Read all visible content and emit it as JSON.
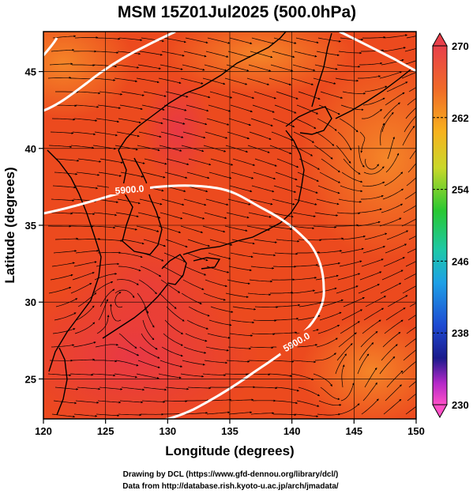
{
  "title": "MSM 15Z01Jul2025 (500.0hPa)",
  "x_axis": {
    "label": "Longitude (degrees)",
    "ticks": [
      "120",
      "125",
      "130",
      "135",
      "140",
      "145",
      "150"
    ],
    "range": [
      120,
      150
    ]
  },
  "y_axis": {
    "label": "Latitude  (degrees)",
    "ticks": [
      "25",
      "30",
      "35",
      "40",
      "45"
    ],
    "range": [
      22.4,
      47.6
    ]
  },
  "colorbar": {
    "ticks": [
      "270",
      "262",
      "254",
      "246",
      "238",
      "230"
    ],
    "range": [
      230,
      270
    ],
    "colors_top_to_bottom": [
      "#e8404a",
      "#f06a28",
      "#f7b21e",
      "#c9d82a",
      "#28c832",
      "#1ec8a8",
      "#1ea0e6",
      "#1e4ad2",
      "#1a1a8c",
      "#b428c8",
      "#ff50c8"
    ]
  },
  "contour_label": "5900.0",
  "contour_labels_shown": [
    "5900.0",
    "5900.0"
  ],
  "credits": {
    "line1": "Drawing by DCL (https://www.gfd-dennou.org/library/dcl/)",
    "line2": "Data from http://database.rish.kyoto-u.ac.jp/arch/jmadata/"
  },
  "colors": {
    "field_base": "#ec4a1e",
    "field_warm": "#f26a22",
    "field_hot": "#e8364a",
    "contour": "#ffffff",
    "coast": "#000000"
  }
}
